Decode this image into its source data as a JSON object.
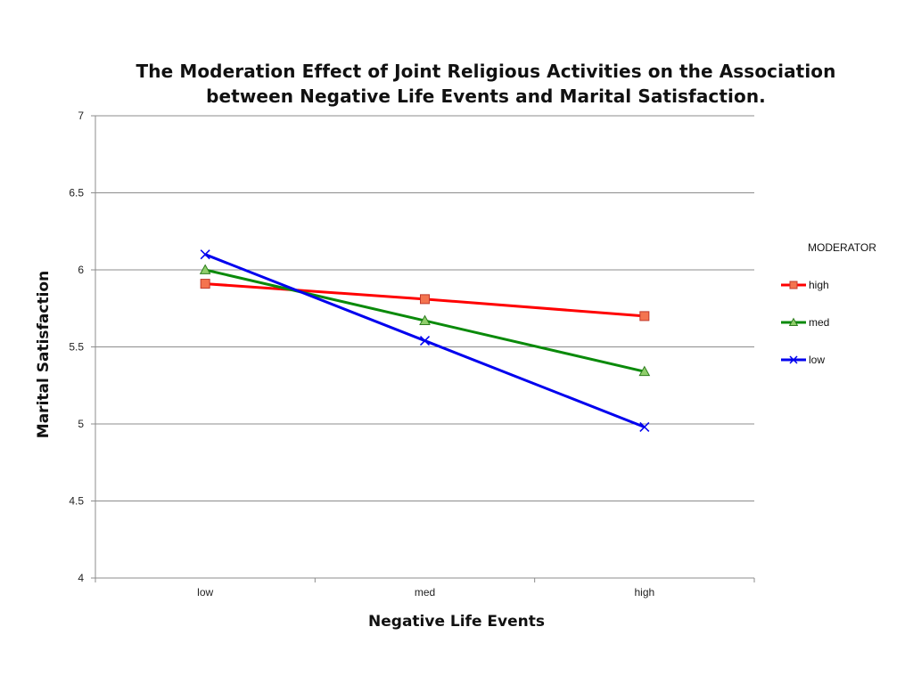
{
  "chart_data": {
    "type": "line",
    "title_line1": "The Moderation Effect of Joint Religious Activities on the Association",
    "title_line2": "between Negative Life Events and Marital Satisfaction.",
    "xlabel": "Negative Life Events",
    "ylabel": "Marital Satisfaction",
    "categories": [
      "low",
      "med",
      "high"
    ],
    "ylim": [
      4,
      7
    ],
    "yticks": [
      "4",
      "4.5",
      "5",
      "5.5",
      "6",
      "6.5",
      "7"
    ],
    "ytick_values": [
      4,
      4.5,
      5,
      5.5,
      6,
      6.5,
      7
    ],
    "grid": true,
    "legend": {
      "title": "MODERATOR",
      "position": "right"
    },
    "series": [
      {
        "name": "high",
        "values": [
          5.91,
          5.81,
          5.7
        ],
        "color": "#ff0000",
        "marker": "square",
        "marker_fill": "#f4744f",
        "marker_stroke": "#c0392b"
      },
      {
        "name": "med",
        "values": [
          6.0,
          5.67,
          5.34
        ],
        "color": "#0a8a0a",
        "marker": "triangle",
        "marker_fill": "#8fce6b",
        "marker_stroke": "#2e7d1f"
      },
      {
        "name": "low",
        "values": [
          6.1,
          5.54,
          4.98
        ],
        "color": "#0000ee",
        "marker": "x",
        "marker_fill": "none",
        "marker_stroke": "#0000ee"
      }
    ]
  }
}
